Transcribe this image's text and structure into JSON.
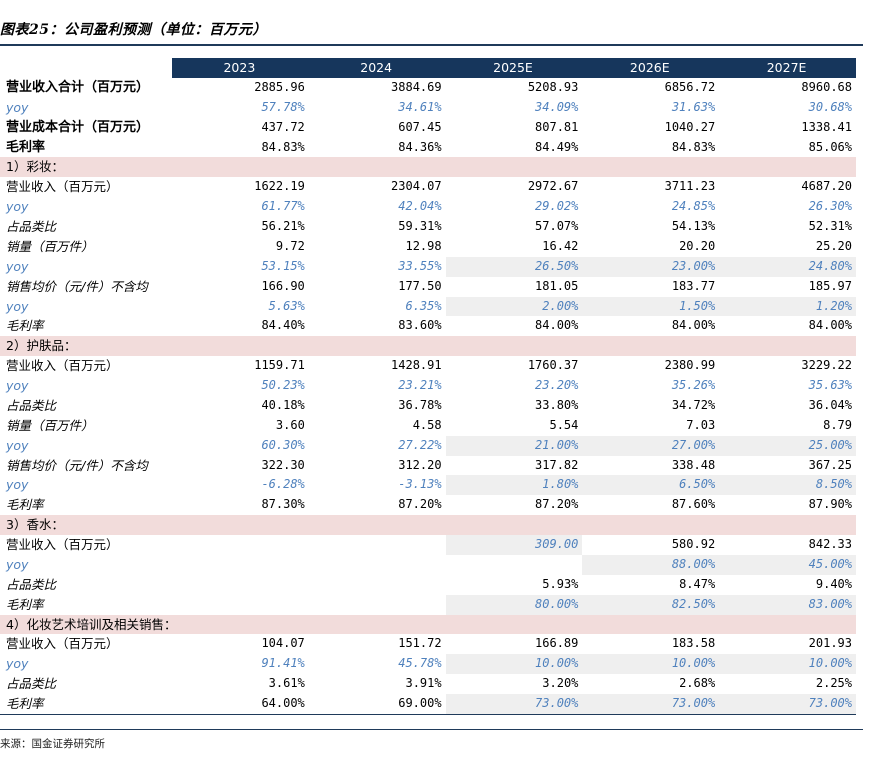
{
  "figure_title": "图表25：公司盈利预测（单位：百万元）",
  "headers": [
    "",
    "2023",
    "2024",
    "2025E",
    "2026E",
    "2027E"
  ],
  "rows": [
    {
      "style": "bold",
      "label": "营业收入合计（百万元）",
      "values": [
        "2885.96",
        "3884.69",
        "5208.93",
        "6856.72",
        "8960.68"
      ]
    },
    {
      "style": "yoy",
      "label": "yoy",
      "values": [
        "57.78%",
        "34.61%",
        "34.09%",
        "31.63%",
        "30.68%"
      ]
    },
    {
      "style": "bold",
      "label": "营业成本合计（百万元）",
      "values": [
        "437.72",
        "607.45",
        "807.81",
        "1040.27",
        "1338.41"
      ]
    },
    {
      "style": "bold",
      "label": "毛利率",
      "values": [
        "84.83%",
        "84.36%",
        "84.49%",
        "84.83%",
        "85.06%"
      ]
    },
    {
      "style": "section",
      "label": "1）彩妆："
    },
    {
      "style": "plain",
      "label": "营业收入（百万元）",
      "values": [
        "1622.19",
        "2304.07",
        "2972.67",
        "3711.23",
        "4687.20"
      ]
    },
    {
      "style": "yoy",
      "label": "yoy",
      "values": [
        "61.77%",
        "42.04%",
        "29.02%",
        "24.85%",
        "26.30%"
      ]
    },
    {
      "style": "ital",
      "label": "占品类比",
      "values": [
        "56.21%",
        "59.31%",
        "57.07%",
        "54.13%",
        "52.31%"
      ]
    },
    {
      "style": "ital",
      "label": "销量（百万件）",
      "values": [
        "9.72",
        "12.98",
        "16.42",
        "20.20",
        "25.20"
      ]
    },
    {
      "style": "yoy",
      "label": "yoy",
      "values": [
        "53.15%",
        "33.55%",
        "26.50%",
        "23.00%",
        "24.80%"
      ]
    },
    {
      "style": "ital",
      "label": "销售均价（元/件）不含均",
      "values": [
        "166.90",
        "177.50",
        "181.05",
        "183.77",
        "185.97"
      ]
    },
    {
      "style": "yoy",
      "label": "yoy",
      "values": [
        "5.63%",
        "6.35%",
        "2.00%",
        "1.50%",
        "1.20%"
      ]
    },
    {
      "style": "ital",
      "label": "毛利率",
      "values": [
        "84.40%",
        "83.60%",
        "84.00%",
        "84.00%",
        "84.00%"
      ]
    },
    {
      "style": "section",
      "label": "2）护肤品："
    },
    {
      "style": "plain",
      "label": "营业收入（百万元）",
      "values": [
        "1159.71",
        "1428.91",
        "1760.37",
        "2380.99",
        "3229.22"
      ]
    },
    {
      "style": "yoy",
      "label": "yoy",
      "values": [
        "50.23%",
        "23.21%",
        "23.20%",
        "35.26%",
        "35.63%"
      ]
    },
    {
      "style": "ital",
      "label": "占品类比",
      "values": [
        "40.18%",
        "36.78%",
        "33.80%",
        "34.72%",
        "36.04%"
      ]
    },
    {
      "style": "ital",
      "label": "销量（百万件）",
      "values": [
        "3.60",
        "4.58",
        "5.54",
        "7.03",
        "8.79"
      ]
    },
    {
      "style": "yoy",
      "label": "yoy",
      "values": [
        "60.30%",
        "27.22%",
        "21.00%",
        "27.00%",
        "25.00%"
      ]
    },
    {
      "style": "ital",
      "label": "销售均价（元/件）不含均",
      "values": [
        "322.30",
        "312.20",
        "317.82",
        "338.48",
        "367.25"
      ]
    },
    {
      "style": "yoy",
      "label": "yoy",
      "values": [
        "-6.28%",
        "-3.13%",
        "1.80%",
        "6.50%",
        "8.50%"
      ]
    },
    {
      "style": "ital",
      "label": "毛利率",
      "values": [
        "87.30%",
        "87.20%",
        "87.20%",
        "87.60%",
        "87.90%"
      ]
    },
    {
      "style": "section",
      "label": "3）香水："
    },
    {
      "style": "plain",
      "label": "营业收入（百万元）",
      "values": [
        "",
        "",
        "309.00",
        "580.92",
        "842.33"
      ]
    },
    {
      "style": "yoy",
      "label": "yoy",
      "values": [
        "",
        "",
        "",
        "88.00%",
        "45.00%"
      ]
    },
    {
      "style": "ital",
      "label": "占品类比",
      "values": [
        "",
        "",
        "5.93%",
        "8.47%",
        "9.40%"
      ]
    },
    {
      "style": "ital",
      "label": "毛利率",
      "values": [
        "",
        "",
        "80.00%",
        "82.50%",
        "83.00%"
      ]
    },
    {
      "style": "section",
      "label": "4）化妆艺术培训及相关销售："
    },
    {
      "style": "plain",
      "label": "营业收入（百万元）",
      "values": [
        "104.07",
        "151.72",
        "166.89",
        "183.58",
        "201.93"
      ]
    },
    {
      "style": "yoy",
      "label": "yoy",
      "values": [
        "91.41%",
        "45.78%",
        "10.00%",
        "10.00%",
        "10.00%"
      ]
    },
    {
      "style": "ital",
      "label": "占品类比",
      "values": [
        "3.61%",
        "3.91%",
        "3.20%",
        "2.68%",
        "2.25%"
      ]
    },
    {
      "style": "ital",
      "label": "毛利率",
      "values": [
        "64.00%",
        "69.00%",
        "73.00%",
        "73.00%",
        "73.00%"
      ]
    }
  ],
  "source": "来源：国金证券研究所",
  "colors": {
    "header_bg": "#16365c",
    "section_bg": "#f2dcdb",
    "yoy_text": "#4f81bd",
    "forecast_shade": "#efefef"
  }
}
